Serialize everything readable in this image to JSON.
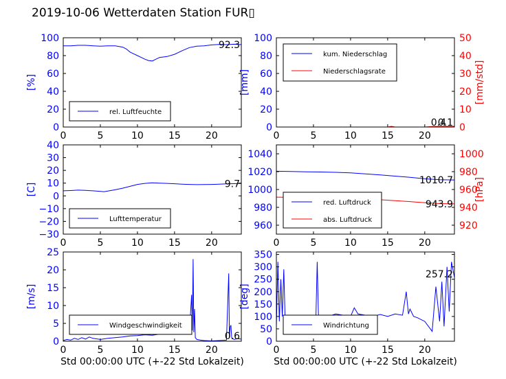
{
  "title": "2019-10-06 Wetterdaten Station FUR▯",
  "chart_data": [
    {
      "id": "humidity",
      "type": "line",
      "xlabel": "",
      "ylabel": "[%]",
      "xlim": [
        0,
        24
      ],
      "ylim": [
        0,
        100
      ],
      "xticks": [
        "0",
        "5",
        "10",
        "15",
        "20"
      ],
      "yticks": [
        "0",
        "20",
        "40",
        "60",
        "80",
        "100"
      ],
      "last_value": "92.3",
      "legend": {
        "placement": "lower-left",
        "entries": [
          "rel. Luftfeuchte"
        ]
      },
      "series": [
        {
          "name": "rel. Luftfeuchte",
          "color": "#0000ff",
          "x": [
            0,
            1,
            2,
            3,
            4,
            5,
            6,
            7,
            8,
            8.5,
            9,
            9.5,
            10,
            10.5,
            11,
            11.5,
            12,
            12.5,
            13,
            13.5,
            14,
            15,
            16,
            17,
            18,
            19,
            20,
            21,
            22,
            23,
            24
          ],
          "y": [
            91,
            91,
            91.5,
            91.5,
            91,
            90.5,
            91,
            91,
            89.5,
            87.5,
            84,
            82,
            80,
            78,
            76,
            74.5,
            74,
            76,
            78,
            78.5,
            79,
            81.5,
            85.5,
            89,
            90.5,
            91,
            92,
            92.5,
            92.3,
            92.8,
            92.3
          ]
        }
      ]
    },
    {
      "id": "precipitation",
      "type": "line",
      "xlabel": "",
      "ylabel": "[mm]",
      "ylabel_right": "[mm/std]",
      "xlim": [
        0,
        24
      ],
      "ylim": [
        0,
        100
      ],
      "ylim_right": [
        0,
        50
      ],
      "xticks": [
        "0",
        "5",
        "10",
        "15",
        "20"
      ],
      "yticks": [
        "0",
        "20",
        "40",
        "60",
        "80",
        "100"
      ],
      "yticks_right": [
        "0",
        "10",
        "20",
        "30",
        "40",
        "50"
      ],
      "last_value": "0.1",
      "last_value_right": "0.4",
      "legend": {
        "placement": "upper-left",
        "entries": [
          "kum. Niederschlag",
          "Niederschlagsrate"
        ]
      },
      "series": [
        {
          "name": "kum. Niederschlag",
          "color": "#0000ff",
          "axis": "left",
          "x": [
            0,
            5,
            10,
            15,
            20,
            24
          ],
          "y": [
            0,
            0,
            0,
            0,
            0,
            0.1
          ]
        },
        {
          "name": "Niederschlagsrate",
          "color": "#ff0000",
          "axis": "right",
          "x": [
            0,
            5,
            10,
            15,
            15.5,
            16,
            17,
            20,
            21,
            24
          ],
          "y": [
            0,
            0,
            0,
            0,
            0.4,
            0,
            0,
            0,
            0.3,
            0.4
          ]
        }
      ]
    },
    {
      "id": "temperature",
      "type": "line",
      "xlabel": "",
      "ylabel": "[C]",
      "xlim": [
        0,
        24
      ],
      "ylim": [
        -30,
        40
      ],
      "xticks": [
        "0",
        "5",
        "10",
        "15",
        "20"
      ],
      "yticks": [
        "−30",
        "−20",
        "−10",
        "0",
        "10",
        "20",
        "30",
        "40"
      ],
      "last_value": "9.7",
      "legend": {
        "placement": "lower-left",
        "entries": [
          "Lufttemperatur"
        ]
      },
      "series": [
        {
          "name": "Lufttemperatur",
          "color": "#0000ff",
          "x": [
            0,
            1,
            2,
            3,
            4,
            5,
            5.5,
            6,
            7,
            8,
            9,
            10,
            11,
            12,
            13,
            14,
            15,
            16,
            17,
            18,
            19,
            20,
            21,
            22,
            23,
            24
          ],
          "y": [
            4,
            4.2,
            4.5,
            4.3,
            4,
            3.5,
            3.2,
            3.8,
            4.8,
            6,
            7.5,
            9,
            9.8,
            10.2,
            10,
            9.8,
            9.5,
            9.2,
            9,
            8.8,
            8.9,
            9,
            9.2,
            9.4,
            9.6,
            9.7
          ]
        }
      ]
    },
    {
      "id": "pressure",
      "type": "line",
      "xlabel": "",
      "ylabel": "",
      "ylabel_right": "[hPa]",
      "xlim": [
        0,
        24
      ],
      "ylim": [
        950,
        1050
      ],
      "ylim_right": [
        910,
        1010
      ],
      "xticks": [
        "0",
        "5",
        "10",
        "15",
        "20"
      ],
      "yticks": [
        "960",
        "980",
        "1000",
        "1020",
        "1040"
      ],
      "yticks_right": [
        "920",
        "940",
        "960",
        "980",
        "1000"
      ],
      "last_value": "1010.7",
      "last_value_right": "943.9",
      "legend": {
        "placement": "lower-left",
        "entries": [
          "red. Luftdruck",
          "abs. Luftdruck"
        ]
      },
      "series": [
        {
          "name": "red. Luftdruck",
          "color": "#0000ff",
          "axis": "left",
          "x": [
            0,
            2,
            4,
            6,
            8,
            10,
            12,
            14,
            16,
            18,
            20,
            22,
            24
          ],
          "y": [
            1020.5,
            1020.2,
            1019.8,
            1019.6,
            1019.2,
            1018.6,
            1017.5,
            1016.4,
            1015,
            1013.6,
            1012,
            1011,
            1010.7
          ]
        },
        {
          "name": "abs. Luftdruck",
          "color": "#ff0000",
          "axis": "right",
          "x": [
            0,
            2,
            4,
            6,
            8,
            10,
            12,
            14,
            16,
            18,
            20,
            22,
            24
          ],
          "y": [
            951.5,
            951.2,
            951,
            950.8,
            950.5,
            950.1,
            949.2,
            948.5,
            947.5,
            946.5,
            945.2,
            944.2,
            943.9
          ]
        }
      ]
    },
    {
      "id": "windspeed",
      "type": "line",
      "xlabel": "Std 00:00:00 UTC (+-22 Std Lokalzeit)",
      "ylabel": "[m/s]",
      "xlim": [
        0,
        24
      ],
      "ylim": [
        0,
        25
      ],
      "xticks": [
        "0",
        "5",
        "10",
        "15",
        "20"
      ],
      "yticks": [
        "0",
        "5",
        "10",
        "15",
        "20",
        "25"
      ],
      "last_value": "0.6",
      "legend": {
        "placement": "lower-left",
        "entries": [
          "Windgeschwindigkeit"
        ]
      },
      "series": [
        {
          "name": "Windgeschwindigkeit",
          "color": "#0000ff",
          "x": [
            0,
            0.5,
            1,
            1.5,
            2,
            2.5,
            3,
            3.5,
            4,
            5,
            6,
            7,
            8,
            9,
            10,
            11,
            12,
            13,
            14,
            15,
            16,
            16.5,
            17,
            17.3,
            17.4,
            17.5,
            17.6,
            17.7,
            17.8,
            18,
            18.5,
            19,
            20,
            21,
            22,
            22.3,
            22.4,
            22.5,
            22.6,
            22.7,
            23,
            23.5,
            24
          ],
          "y": [
            0.2,
            0.5,
            0.3,
            0.8,
            0.5,
            1.0,
            0.6,
            1.2,
            0.8,
            0.5,
            0.8,
            1.0,
            1.2,
            1.5,
            1.6,
            1.8,
            1.7,
            2.0,
            2.1,
            2.3,
            2.5,
            2.8,
            2.5,
            13,
            3,
            23,
            2.5,
            9,
            1,
            0.5,
            0.3,
            0.2,
            0.1,
            0.2,
            0.3,
            19,
            1,
            4,
            4.5,
            1,
            0.5,
            0.7,
            0.6
          ]
        }
      ]
    },
    {
      "id": "winddirection",
      "type": "line",
      "xlabel": "Std 00:00:00 UTC (+-22 Std Lokalzeit)",
      "ylabel": "[deg]",
      "xlim": [
        0,
        24
      ],
      "ylim": [
        0,
        360
      ],
      "xticks": [
        "0",
        "5",
        "10",
        "15",
        "20"
      ],
      "yticks": [
        "0",
        "50",
        "100",
        "150",
        "200",
        "250",
        "300",
        "350"
      ],
      "last_value": "257.2",
      "legend": {
        "placement": "lower-left",
        "entries": [
          "Windrichtung"
        ]
      },
      "series": [
        {
          "name": "Windrichtung",
          "color": "#0000ff",
          "x": [
            0,
            0.2,
            0.4,
            0.6,
            0.8,
            1.0,
            1.2,
            1.5,
            2,
            3,
            4,
            5,
            5.3,
            5.5,
            5.7,
            6,
            7,
            8,
            9,
            10,
            10.5,
            11,
            12,
            13,
            14,
            15,
            16,
            17,
            17.5,
            17.8,
            18,
            18.5,
            19,
            20,
            20.5,
            21,
            21.5,
            22,
            22.3,
            22.6,
            23,
            23.3,
            23.6,
            24
          ],
          "y": [
            60,
            320,
            80,
            250,
            100,
            290,
            70,
            90,
            75,
            85,
            95,
            80,
            60,
            320,
            70,
            90,
            100,
            110,
            105,
            100,
            135,
            110,
            105,
            100,
            108,
            100,
            110,
            105,
            200,
            110,
            130,
            100,
            95,
            80,
            60,
            40,
            220,
            80,
            240,
            60,
            300,
            120,
            320,
            257
          ]
        }
      ]
    }
  ]
}
